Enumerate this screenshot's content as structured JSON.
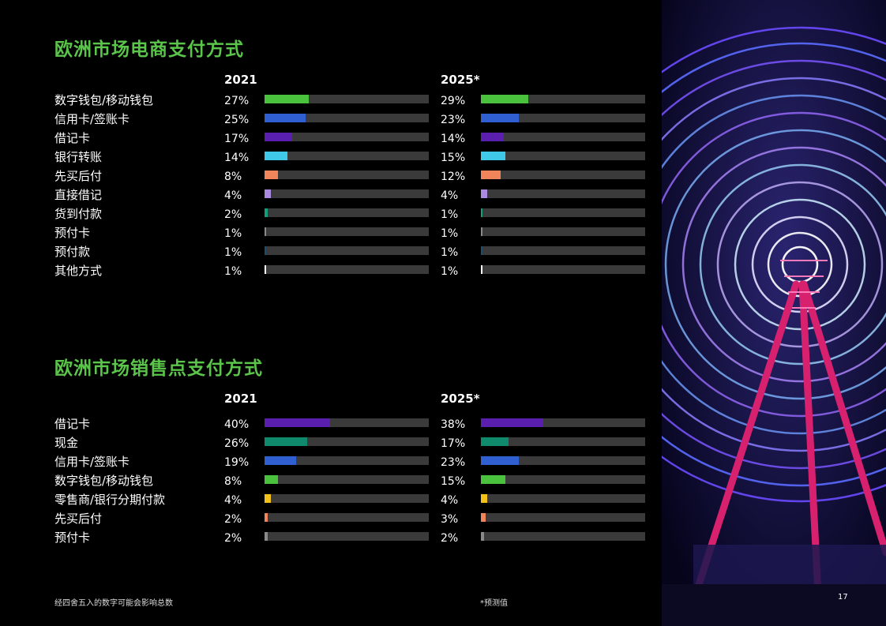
{
  "colors": {
    "background": "#000000",
    "title": "#5bc44a",
    "track": "#3a3a3a",
    "digital_wallet": "#4ac23e",
    "credit_card": "#2f5fd0",
    "debit_card": "#5b1fb0",
    "bank_transfer": "#40c8e8",
    "bnpl": "#f0845a",
    "direct_debit": "#a98ae0",
    "cash_on_delivery": "#11a07a",
    "cash": "#0f8a6c",
    "prepaid": "#8a8a8a",
    "prepayment": "#1f4d6a",
    "other": "#ffffff",
    "installment": "#f3c21a"
  },
  "footer": {
    "rounding_note": "经四舍五入的数字可能会影响总数",
    "forecast_note": "*预测值",
    "page_number": "17"
  },
  "chart_data": [
    {
      "type": "bar",
      "title": "欧洲市场电商支付方式",
      "unit": "%",
      "categories": [
        "数字钱包/移动钱包",
        "信用卡/签账卡",
        "借记卡",
        "银行转账",
        "先买后付",
        "直接借记",
        "货到付款",
        "预付卡",
        "预付款",
        "其他方式"
      ],
      "category_colors": [
        "#4ac23e",
        "#2f5fd0",
        "#5b1fb0",
        "#40c8e8",
        "#f0845a",
        "#a98ae0",
        "#11a07a",
        "#8a8a8a",
        "#1f4d6a",
        "#ffffff"
      ],
      "ylim": [
        0,
        100
      ],
      "series": [
        {
          "name": "2021",
          "values": [
            27,
            25,
            17,
            14,
            8,
            4,
            2,
            1,
            1,
            1
          ]
        },
        {
          "name": "2025*",
          "values": [
            29,
            23,
            14,
            15,
            12,
            4,
            1,
            1,
            1,
            1
          ]
        }
      ],
      "grid": false
    },
    {
      "type": "bar",
      "title": "欧洲市场销售点支付方式",
      "unit": "%",
      "categories": [
        "借记卡",
        "现金",
        "信用卡/签账卡",
        "数字钱包/移动钱包",
        "零售商/银行分期付款",
        "先买后付",
        "预付卡"
      ],
      "category_colors": [
        "#5b1fb0",
        "#0f8a6c",
        "#2f5fd0",
        "#4ac23e",
        "#f3c21a",
        "#f0845a",
        "#8a8a8a"
      ],
      "ylim": [
        0,
        100
      ],
      "series": [
        {
          "name": "2021",
          "values": [
            40,
            26,
            19,
            8,
            4,
            2,
            2
          ]
        },
        {
          "name": "2025*",
          "values": [
            38,
            17,
            23,
            15,
            4,
            3,
            2
          ]
        }
      ],
      "grid": false
    }
  ]
}
